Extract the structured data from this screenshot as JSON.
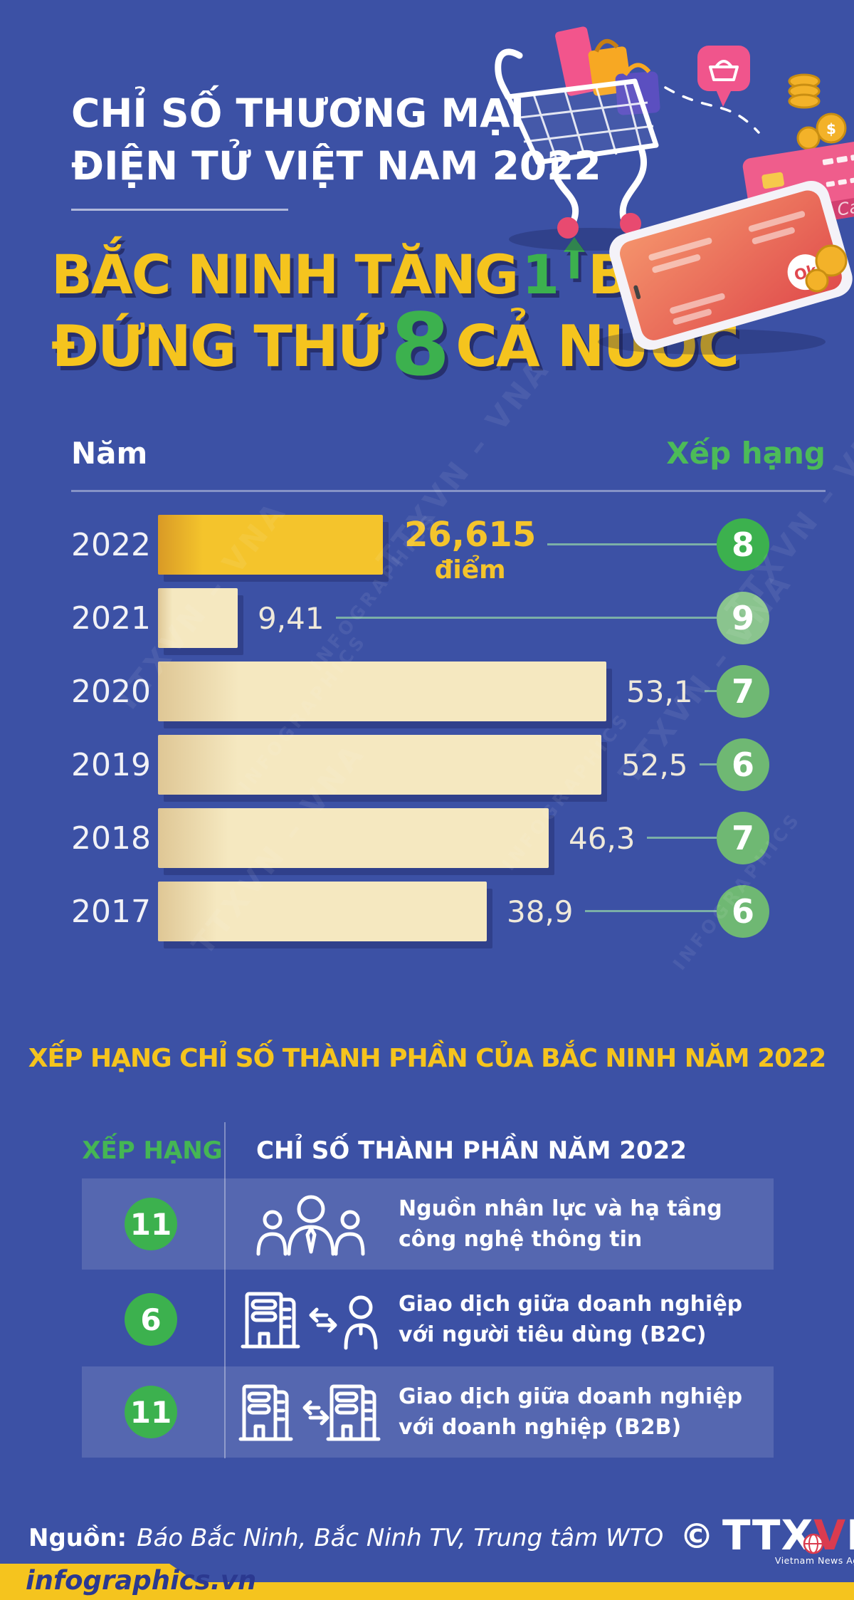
{
  "header": {
    "title_line1": "CHỈ SỐ THƯƠNG MẠI",
    "title_line2": "ĐIỆN TỬ VIỆT NAM 2022",
    "headline_line1": {
      "pre": "BẮC NINH TĂNG",
      "num": "1",
      "post": "BẬC"
    },
    "headline_line2": {
      "pre": "ĐỨNG THỨ",
      "num": "8",
      "post": "CẢ NƯỚC"
    }
  },
  "chart_data": {
    "type": "bar",
    "orientation": "horizontal",
    "col_year": "Năm",
    "col_rank": "Xếp hạng",
    "categories": [
      "2022",
      "2021",
      "2020",
      "2019",
      "2018",
      "2017"
    ],
    "values": [
      26.615,
      9.41,
      53.1,
      52.5,
      46.3,
      38.9
    ],
    "value_labels": [
      "26,615",
      "9,41",
      "53,1",
      "52,5",
      "46,3",
      "38,9"
    ],
    "value_suffixes": [
      "điểm",
      "",
      "",
      "",
      "",
      ""
    ],
    "ranks": [
      "8",
      "9",
      "7",
      "6",
      "7",
      "6"
    ],
    "rank_circle_colors": [
      "#3CB14E",
      "#8AC48E",
      "#6FB873",
      "#6FB873",
      "#6FB873",
      "#6FB873"
    ],
    "xlim": [
      0,
      53.1
    ],
    "highlight_index": 0,
    "grid": false,
    "legend": false
  },
  "section": {
    "title": "XẾP HẠNG CHỈ SỐ THÀNH PHẦN CỦA BẮC NINH NĂM 2022"
  },
  "table": {
    "header_rank": "XẾP HẠNG",
    "header_index": "CHỈ SỐ THÀNH PHẦN NĂM 2022",
    "rows": [
      {
        "rank": "11",
        "icon": "people-icon",
        "line1": "Nguồn nhân lực và hạ tầng",
        "line2": "công nghệ thông tin",
        "highlight": true
      },
      {
        "rank": "6",
        "icon": "building-person-icon",
        "line1": "Giao dịch giữa doanh nghiệp",
        "line2": "với người tiêu dùng (B2C)",
        "highlight": false
      },
      {
        "rank": "11",
        "icon": "building-building-icon",
        "line1": "Giao dịch giữa doanh nghiệp",
        "line2": "với doanh nghiệp (B2B)",
        "highlight": true
      }
    ]
  },
  "footer": {
    "source_label": "Nguồn:",
    "source_text": "Báo Bắc Ninh, Bắc Ninh TV, Trung tâm WTO",
    "copyright": "©",
    "agency_ttx": "TTX",
    "agency_v": "V",
    "agency_n": "N",
    "agency_sub": "Vietnam News Agency",
    "brand": "infographics.vn"
  },
  "watermark": {
    "text_a": "TTXVN – VNA",
    "text_b": "INFOGRAPHICS"
  },
  "colors": {
    "background": "#3C51A5",
    "accent_yellow": "#F5C41E",
    "accent_green": "#3CB14E",
    "muted_green": "#6FB873",
    "bar_cream": "#F5E8C0",
    "bar_gold": "#F4C42C",
    "shadow_navy": "#27306E",
    "connector_teal": "#7BAFA7",
    "brand_blue": "#2B3990",
    "logo_red": "#DA3B4F"
  }
}
